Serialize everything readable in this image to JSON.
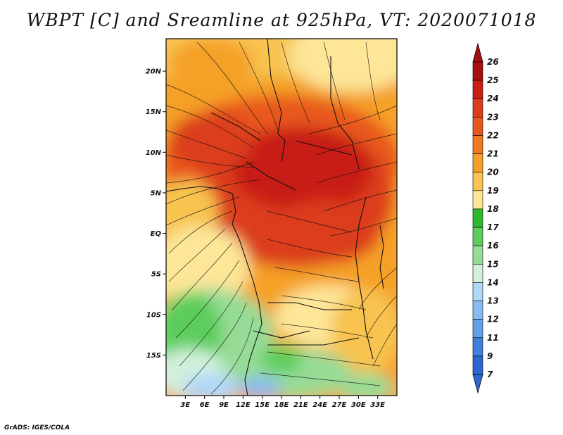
{
  "title": "WBPT [C] and Sreamline at 925hPa, VT: 2020071018",
  "footer": "GrADS: IGES/COLA",
  "map": {
    "lon_range": [
      0,
      36
    ],
    "lat_range": [
      -20,
      24
    ],
    "lat_ticks": [
      {
        "value": 20,
        "label": "20N"
      },
      {
        "value": 15,
        "label": "15N"
      },
      {
        "value": 10,
        "label": "10N"
      },
      {
        "value": 5,
        "label": "5N"
      },
      {
        "value": 0,
        "label": "EQ"
      },
      {
        "value": -5,
        "label": "5S"
      },
      {
        "value": -10,
        "label": "10S"
      },
      {
        "value": -15,
        "label": "15S"
      }
    ],
    "lon_ticks": [
      {
        "value": 3,
        "label": "3E"
      },
      {
        "value": 6,
        "label": "6E"
      },
      {
        "value": 9,
        "label": "9E"
      },
      {
        "value": 12,
        "label": "12E"
      },
      {
        "value": 15,
        "label": "15E"
      },
      {
        "value": 18,
        "label": "18E"
      },
      {
        "value": 21,
        "label": "21E"
      },
      {
        "value": 24,
        "label": "24E"
      },
      {
        "value": 27,
        "label": "27E"
      },
      {
        "value": 30,
        "label": "30E"
      },
      {
        "value": 33,
        "label": "33E"
      }
    ]
  },
  "colorbar": {
    "labels": [
      "26",
      "25",
      "24",
      "23",
      "22",
      "21",
      "20",
      "19",
      "18",
      "17",
      "16",
      "15",
      "14",
      "13",
      "12",
      "11",
      "9",
      "7"
    ],
    "colors": [
      "#a50f0f",
      "#c81e14",
      "#dc3c1e",
      "#e8581e",
      "#f0781e",
      "#f5a028",
      "#f8c350",
      "#fde698",
      "#2eb82e",
      "#5ccd5c",
      "#96dc96",
      "#d2f0dc",
      "#b0d8f8",
      "#88bcf0",
      "#62a2e8",
      "#4080dc",
      "#2c66d0"
    ],
    "top_color": "#a50f0f",
    "bottom_color": "#2c66d0"
  }
}
